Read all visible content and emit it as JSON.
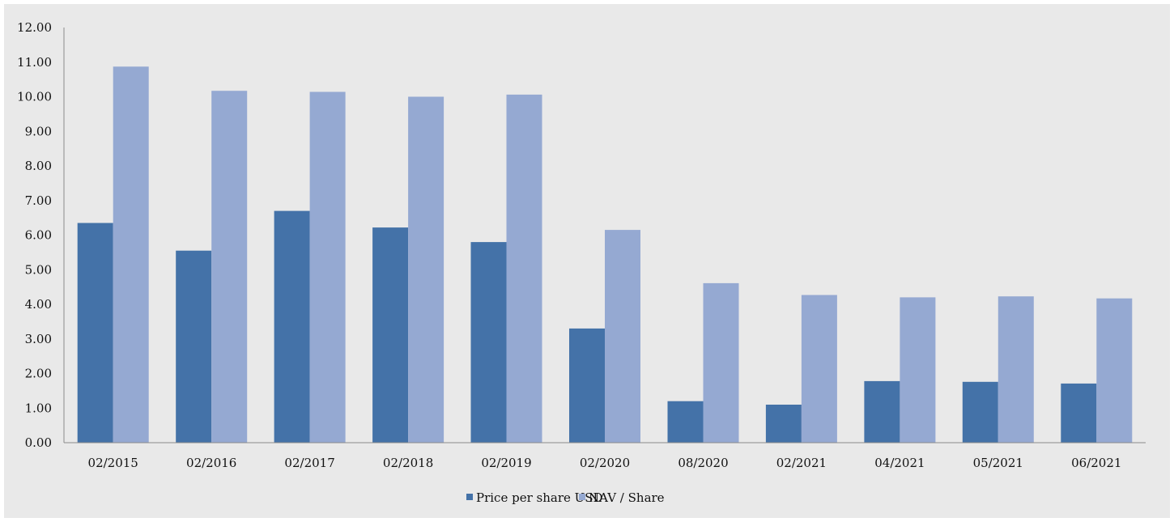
{
  "chart_data": {
    "type": "bar",
    "categories": [
      "02/2015",
      "02/2016",
      "02/2017",
      "02/2018",
      "02/2019",
      "02/2020",
      "08/2020",
      "02/2021",
      "04/2021",
      "05/2021",
      "06/2021"
    ],
    "series": [
      {
        "name": "Price per share USD",
        "color": "#4472a8",
        "values": [
          6.35,
          5.55,
          6.7,
          6.22,
          5.8,
          3.3,
          1.2,
          1.1,
          1.78,
          1.76,
          1.71
        ]
      },
      {
        "name": "NAV / Share",
        "color": "#95a9d2",
        "values": [
          10.87,
          10.17,
          10.14,
          10.0,
          10.06,
          6.15,
          4.61,
          4.27,
          4.2,
          4.23,
          4.17
        ]
      }
    ],
    "yticks": [
      "0.00",
      "1.00",
      "2.00",
      "3.00",
      "4.00",
      "5.00",
      "6.00",
      "7.00",
      "8.00",
      "9.00",
      "10.00",
      "11.00",
      "12.00"
    ],
    "ylim": [
      0,
      12
    ],
    "grid": false,
    "legend_position": "bottom",
    "title": "",
    "xlabel": "",
    "ylabel": ""
  }
}
